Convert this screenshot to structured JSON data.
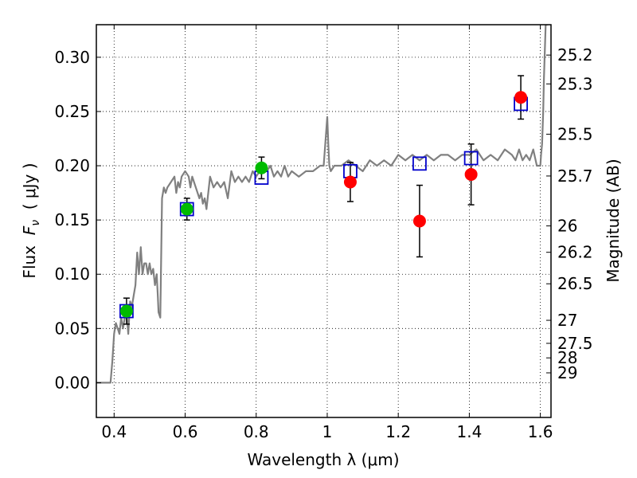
{
  "chart_data": {
    "type": "scatter",
    "title": "",
    "xlabel": "Wavelength  λ (μm)",
    "ylabel": "Flux  F_ν  ( μJy )",
    "ylabel_parts": {
      "prefix": "Flux  ",
      "symbol": "F",
      "subscript": "ν",
      "suffix": "  ( μJy )"
    },
    "y2label": "Magnitude (AB)",
    "xlim": [
      0.35,
      1.63
    ],
    "ylim": [
      -0.032,
      0.33
    ],
    "grid": true,
    "x_ticks": [
      {
        "value": 0.4,
        "label": "0.4"
      },
      {
        "value": 0.6,
        "label": "0.6"
      },
      {
        "value": 0.8,
        "label": "0.8"
      },
      {
        "value": 1.0,
        "label": "1"
      },
      {
        "value": 1.2,
        "label": "1.2"
      },
      {
        "value": 1.4,
        "label": "1.4"
      },
      {
        "value": 1.6,
        "label": "1.6"
      }
    ],
    "y_ticks": [
      {
        "value": 0.0,
        "label": "0.00"
      },
      {
        "value": 0.05,
        "label": "0.05"
      },
      {
        "value": 0.1,
        "label": "0.10"
      },
      {
        "value": 0.15,
        "label": "0.15"
      },
      {
        "value": 0.2,
        "label": "0.20"
      },
      {
        "value": 0.25,
        "label": "0.25"
      },
      {
        "value": 0.3,
        "label": "0.30"
      }
    ],
    "y2_ticks": [
      {
        "mag": 25.2,
        "label": "25.2"
      },
      {
        "mag": 25.3,
        "label": "25.3"
      },
      {
        "mag": 25.5,
        "label": "25.5"
      },
      {
        "mag": 25.7,
        "label": "25.7"
      },
      {
        "mag": 26,
        "label": "26"
      },
      {
        "mag": 26.2,
        "label": "26.2"
      },
      {
        "mag": 26.5,
        "label": "26.5"
      },
      {
        "mag": 27,
        "label": "27"
      },
      {
        "mag": 27.5,
        "label": "27.5"
      },
      {
        "mag": 28,
        "label": "28"
      },
      {
        "mag": 29,
        "label": "29"
      }
    ],
    "series": [
      {
        "name": "model_sed",
        "kind": "line",
        "color": "#808080",
        "x": [
          0.35,
          0.38,
          0.39,
          0.395,
          0.4,
          0.405,
          0.41,
          0.415,
          0.42,
          0.425,
          0.43,
          0.435,
          0.44,
          0.445,
          0.45,
          0.455,
          0.46,
          0.465,
          0.47,
          0.475,
          0.48,
          0.485,
          0.49,
          0.495,
          0.5,
          0.505,
          0.51,
          0.515,
          0.52,
          0.523,
          0.525,
          0.53,
          0.535,
          0.54,
          0.545,
          0.55,
          0.56,
          0.57,
          0.575,
          0.58,
          0.585,
          0.59,
          0.6,
          0.61,
          0.615,
          0.62,
          0.63,
          0.64,
          0.645,
          0.65,
          0.655,
          0.66,
          0.67,
          0.68,
          0.69,
          0.7,
          0.71,
          0.72,
          0.73,
          0.74,
          0.75,
          0.76,
          0.77,
          0.78,
          0.79,
          0.8,
          0.81,
          0.82,
          0.83,
          0.84,
          0.85,
          0.86,
          0.87,
          0.88,
          0.89,
          0.9,
          0.92,
          0.94,
          0.96,
          0.98,
          0.99,
          1.0,
          1.003,
          1.006,
          1.01,
          1.02,
          1.04,
          1.06,
          1.08,
          1.1,
          1.12,
          1.14,
          1.16,
          1.18,
          1.2,
          1.22,
          1.24,
          1.26,
          1.28,
          1.3,
          1.32,
          1.34,
          1.36,
          1.38,
          1.4,
          1.42,
          1.44,
          1.46,
          1.48,
          1.5,
          1.52,
          1.53,
          1.54,
          1.55,
          1.56,
          1.57,
          1.58,
          1.59,
          1.595,
          1.6,
          1.602,
          1.605,
          1.608,
          1.61,
          1.615,
          1.62
        ],
        "y": [
          0.0,
          0.0,
          0.0,
          0.02,
          0.045,
          0.055,
          0.05,
          0.045,
          0.06,
          0.05,
          0.06,
          0.065,
          0.045,
          0.075,
          0.07,
          0.08,
          0.09,
          0.12,
          0.1,
          0.125,
          0.1,
          0.11,
          0.11,
          0.1,
          0.11,
          0.1,
          0.105,
          0.09,
          0.1,
          0.08,
          0.065,
          0.06,
          0.17,
          0.18,
          0.175,
          0.18,
          0.185,
          0.19,
          0.175,
          0.185,
          0.18,
          0.19,
          0.195,
          0.19,
          0.18,
          0.19,
          0.18,
          0.17,
          0.175,
          0.165,
          0.17,
          0.16,
          0.19,
          0.18,
          0.185,
          0.18,
          0.185,
          0.17,
          0.195,
          0.185,
          0.19,
          0.185,
          0.19,
          0.185,
          0.195,
          0.19,
          0.195,
          0.2,
          0.195,
          0.2,
          0.19,
          0.195,
          0.19,
          0.2,
          0.19,
          0.195,
          0.19,
          0.195,
          0.195,
          0.2,
          0.2,
          0.245,
          0.22,
          0.2,
          0.195,
          0.2,
          0.2,
          0.205,
          0.2,
          0.195,
          0.205,
          0.2,
          0.205,
          0.2,
          0.21,
          0.205,
          0.21,
          0.205,
          0.21,
          0.205,
          0.21,
          0.21,
          0.205,
          0.21,
          0.21,
          0.215,
          0.205,
          0.21,
          0.205,
          0.215,
          0.21,
          0.205,
          0.215,
          0.205,
          0.21,
          0.205,
          0.215,
          0.2,
          0.2,
          0.2,
          0.21,
          0.22,
          0.25,
          0.28,
          0.33,
          0.33
        ]
      },
      {
        "name": "model_bandpass",
        "kind": "square",
        "color": "#0000cc",
        "x": [
          0.435,
          0.605,
          0.815,
          1.065,
          1.26,
          1.405,
          1.545
        ],
        "y": [
          0.066,
          0.16,
          0.189,
          0.195,
          0.202,
          0.207,
          0.257
        ]
      },
      {
        "name": "observed_optical",
        "kind": "circle",
        "color": "#00bb00",
        "x": [
          0.435,
          0.605,
          0.815
        ],
        "y": [
          0.066,
          0.16,
          0.198
        ],
        "yerr": [
          0.012,
          0.01,
          0.01
        ]
      },
      {
        "name": "observed_nir",
        "kind": "circle",
        "color": "#ff0000",
        "x": [
          1.065,
          1.26,
          1.405,
          1.545
        ],
        "y": [
          0.185,
          0.149,
          0.192,
          0.263
        ],
        "yerr": [
          0.018,
          0.033,
          0.028,
          0.02
        ]
      }
    ]
  }
}
